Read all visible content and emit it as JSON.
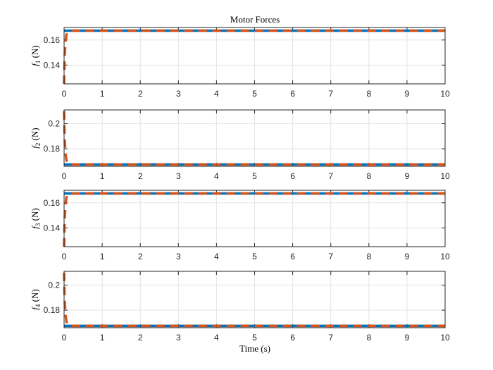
{
  "figure": {
    "title": "Motor Forces",
    "xlabel": "Time (s)"
  },
  "chart_data": [
    {
      "type": "line",
      "ylabel": "f₁ (N)",
      "ylabel_main": "f",
      "ylabel_sub": "1",
      "ylabel_unit": " (N)",
      "xlim": [
        0,
        10
      ],
      "ylim": [
        0.125,
        0.17
      ],
      "xticks": [
        0,
        1,
        2,
        3,
        4,
        5,
        6,
        7,
        8,
        9,
        10
      ],
      "yticks": [
        0.14,
        0.16
      ],
      "ytick_labels": [
        "0.14",
        "0.16"
      ],
      "grid": true,
      "series": [
        {
          "color": "#0072BD",
          "style": "solid",
          "x": [
            0,
            0.02,
            0.05,
            0.1,
            0.15,
            0.2,
            10
          ],
          "y": [
            0.1675,
            0.1675,
            0.1675,
            0.1675,
            0.1675,
            0.1675,
            0.1675
          ]
        },
        {
          "color": "#D95319",
          "style": "dashed",
          "x": [
            0,
            0.01,
            0.02,
            0.04,
            0.06,
            0.1,
            0.15,
            0.2,
            10
          ],
          "y": [
            0.125,
            0.14,
            0.15,
            0.159,
            0.164,
            0.1665,
            0.1673,
            0.1675,
            0.1675
          ]
        }
      ]
    },
    {
      "type": "line",
      "ylabel": "f₂ (N)",
      "ylabel_main": "f",
      "ylabel_sub": "2",
      "ylabel_unit": " (N)",
      "xlim": [
        0,
        10
      ],
      "ylim": [
        0.166,
        0.211
      ],
      "xticks": [
        0,
        1,
        2,
        3,
        4,
        5,
        6,
        7,
        8,
        9,
        10
      ],
      "yticks": [
        0.18,
        0.2
      ],
      "ytick_labels": [
        "0.18",
        "0.2"
      ],
      "grid": true,
      "series": [
        {
          "color": "#0072BD",
          "style": "solid",
          "x": [
            0,
            0.02,
            0.05,
            0.1,
            0.15,
            0.2,
            10
          ],
          "y": [
            0.1675,
            0.1675,
            0.1675,
            0.1675,
            0.1675,
            0.1675,
            0.1675
          ]
        },
        {
          "color": "#D95319",
          "style": "dashed",
          "x": [
            0,
            0.01,
            0.02,
            0.04,
            0.06,
            0.1,
            0.15,
            0.2,
            10
          ],
          "y": [
            0.21,
            0.195,
            0.185,
            0.176,
            0.171,
            0.1685,
            0.1677,
            0.1675,
            0.1675
          ]
        }
      ]
    },
    {
      "type": "line",
      "ylabel": "f₃ (N)",
      "ylabel_main": "f",
      "ylabel_sub": "3",
      "ylabel_unit": " (N)",
      "xlim": [
        0,
        10
      ],
      "ylim": [
        0.125,
        0.17
      ],
      "xticks": [
        0,
        1,
        2,
        3,
        4,
        5,
        6,
        7,
        8,
        9,
        10
      ],
      "yticks": [
        0.14,
        0.16
      ],
      "ytick_labels": [
        "0.14",
        "0.16"
      ],
      "grid": true,
      "series": [
        {
          "color": "#0072BD",
          "style": "solid",
          "x": [
            0,
            0.02,
            0.05,
            0.1,
            0.15,
            0.2,
            10
          ],
          "y": [
            0.1675,
            0.1675,
            0.1675,
            0.1675,
            0.1675,
            0.1675,
            0.1675
          ]
        },
        {
          "color": "#D95319",
          "style": "dashed",
          "x": [
            0,
            0.01,
            0.02,
            0.04,
            0.06,
            0.1,
            0.15,
            0.2,
            10
          ],
          "y": [
            0.125,
            0.14,
            0.15,
            0.159,
            0.164,
            0.1665,
            0.1673,
            0.1675,
            0.1675
          ]
        }
      ]
    },
    {
      "type": "line",
      "ylabel": "f₄ (N)",
      "ylabel_main": "f",
      "ylabel_sub": "4",
      "ylabel_unit": " (N)",
      "xlim": [
        0,
        10
      ],
      "ylim": [
        0.166,
        0.211
      ],
      "xticks": [
        0,
        1,
        2,
        3,
        4,
        5,
        6,
        7,
        8,
        9,
        10
      ],
      "yticks": [
        0.18,
        0.2
      ],
      "ytick_labels": [
        "0.18",
        "0.2"
      ],
      "grid": true,
      "series": [
        {
          "color": "#0072BD",
          "style": "solid",
          "x": [
            0,
            0.02,
            0.05,
            0.1,
            0.15,
            0.2,
            10
          ],
          "y": [
            0.1675,
            0.1675,
            0.1675,
            0.1675,
            0.1675,
            0.1675,
            0.1675
          ]
        },
        {
          "color": "#D95319",
          "style": "dashed",
          "x": [
            0,
            0.01,
            0.02,
            0.04,
            0.06,
            0.1,
            0.15,
            0.2,
            10
          ],
          "y": [
            0.21,
            0.195,
            0.185,
            0.176,
            0.171,
            0.1685,
            0.1677,
            0.1675,
            0.1675
          ]
        }
      ]
    }
  ]
}
